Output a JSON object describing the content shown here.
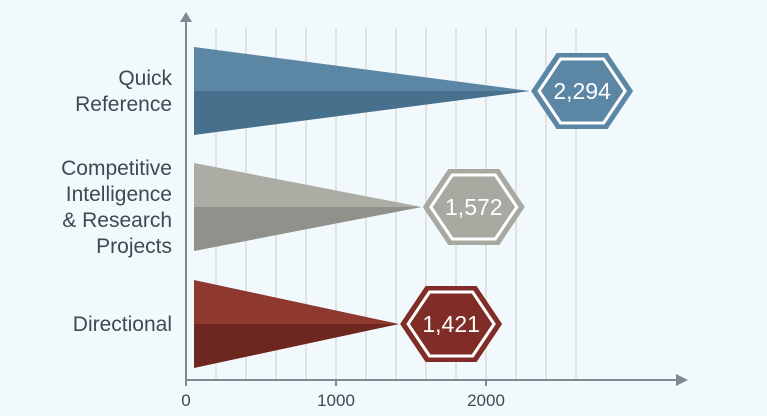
{
  "chart_data": {
    "type": "bar",
    "title": "",
    "xlabel": "",
    "ylabel": "",
    "categories": [
      [
        "Quick",
        "Reference"
      ],
      [
        "Competitive",
        "Intelligence",
        "& Research",
        "Projects"
      ],
      [
        "Directional"
      ]
    ],
    "values": [
      2294,
      1572,
      1421
    ],
    "value_labels": [
      "2,294",
      "1,572",
      "1,421"
    ],
    "xlim": [
      0,
      2650
    ],
    "x_ticks": [
      0,
      1000,
      2000
    ],
    "x_tick_labels": [
      "0",
      "1000",
      "2000"
    ],
    "minor_gridline_step": 200,
    "grid": true,
    "orientation": "horizontal",
    "colors": {
      "series": [
        {
          "top": "#5b87a5",
          "bottom": "#47708d",
          "badge": "#5b87a5"
        },
        {
          "top": "#abada4",
          "bottom": "#8f918a",
          "badge": "#a8aaa2"
        },
        {
          "top": "#8e3830",
          "bottom": "#6e2620",
          "badge": "#7f2d26"
        }
      ],
      "axis": "#7d8a92",
      "grid": "#d9dcd8",
      "background": "#f1f9fc"
    }
  }
}
